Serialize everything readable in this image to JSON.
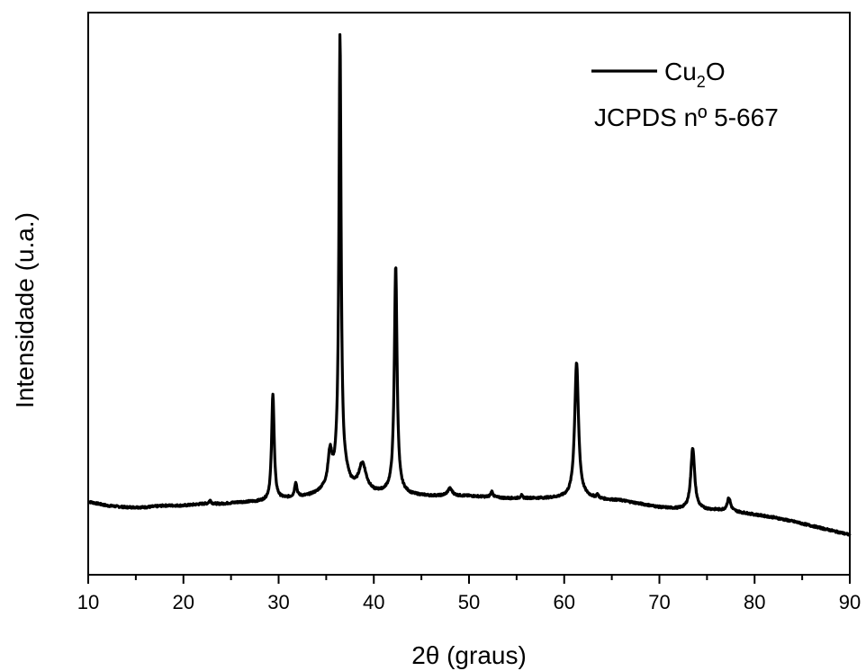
{
  "chart_data": {
    "type": "line",
    "xlabel": "2θ (graus)",
    "ylabel": "Intensidade (u.a.)",
    "xlim": [
      10,
      90
    ],
    "ylim": [
      0,
      100
    ],
    "x_ticks": [
      10,
      20,
      30,
      40,
      50,
      60,
      70,
      80,
      90
    ],
    "y_ticks_labeled": false,
    "grid": false,
    "legend_position": "top-right",
    "legend": {
      "series_label_main": "Cu",
      "series_label_sub": "2",
      "series_label_tail": "O",
      "note": "JCPDS nº 5-667"
    },
    "series": [
      {
        "name": "Cu2O",
        "color": "#000000",
        "baseline": [
          [
            10,
            13.0
          ],
          [
            12,
            12.3
          ],
          [
            14,
            12.0
          ],
          [
            16,
            12.0
          ],
          [
            18,
            12.3
          ],
          [
            20,
            12.3
          ],
          [
            22,
            12.6
          ],
          [
            24,
            12.6
          ],
          [
            26,
            12.9
          ],
          [
            28,
            13.0
          ],
          [
            29,
            13.1
          ],
          [
            30,
            13.4
          ],
          [
            31,
            13.6
          ],
          [
            32,
            13.8
          ],
          [
            33,
            14.0
          ],
          [
            34,
            14.5
          ],
          [
            35,
            15.5
          ],
          [
            35.8,
            17.0
          ],
          [
            36.4,
            20.0
          ],
          [
            37.0,
            18.0
          ],
          [
            37.6,
            16.0
          ],
          [
            38.2,
            15.3
          ],
          [
            39.0,
            15.2
          ],
          [
            40,
            14.6
          ],
          [
            41,
            14.6
          ],
          [
            42,
            15.0
          ],
          [
            43,
            14.6
          ],
          [
            44,
            14.2
          ],
          [
            46,
            14.0
          ],
          [
            48,
            14.0
          ],
          [
            50,
            14.0
          ],
          [
            52,
            13.8
          ],
          [
            54,
            13.6
          ],
          [
            56,
            13.6
          ],
          [
            58,
            13.6
          ],
          [
            60,
            13.7
          ],
          [
            62,
            13.8
          ],
          [
            64,
            13.4
          ],
          [
            66,
            13.2
          ],
          [
            68,
            12.6
          ],
          [
            70,
            12.0
          ],
          [
            72,
            11.7
          ],
          [
            74,
            11.6
          ],
          [
            76,
            11.5
          ],
          [
            78,
            11.2
          ],
          [
            80,
            10.7
          ],
          [
            82,
            10.2
          ],
          [
            84,
            9.5
          ],
          [
            86,
            8.7
          ],
          [
            88,
            7.9
          ],
          [
            90,
            7.1
          ]
        ],
        "peaks": [
          {
            "x": 22.8,
            "height": 0.6,
            "width": 0.15
          },
          {
            "x": 29.4,
            "height": 19.0,
            "width": 0.16
          },
          {
            "x": 31.8,
            "height": 2.6,
            "width": 0.14
          },
          {
            "x": 35.4,
            "height": 5.5,
            "width": 0.25
          },
          {
            "x": 36.45,
            "height": 76.0,
            "width": 0.13
          },
          {
            "x": 38.8,
            "height": 4.5,
            "width": 0.45
          },
          {
            "x": 42.3,
            "height": 40.0,
            "width": 0.17
          },
          {
            "x": 48.0,
            "height": 1.3,
            "width": 0.3
          },
          {
            "x": 52.4,
            "height": 1.0,
            "width": 0.15
          },
          {
            "x": 55.5,
            "height": 0.5,
            "width": 0.12
          },
          {
            "x": 61.3,
            "height": 24.0,
            "width": 0.24
          },
          {
            "x": 63.5,
            "height": 0.6,
            "width": 0.12
          },
          {
            "x": 73.5,
            "height": 11.0,
            "width": 0.24
          },
          {
            "x": 77.3,
            "height": 2.3,
            "width": 0.22
          }
        ]
      }
    ]
  }
}
